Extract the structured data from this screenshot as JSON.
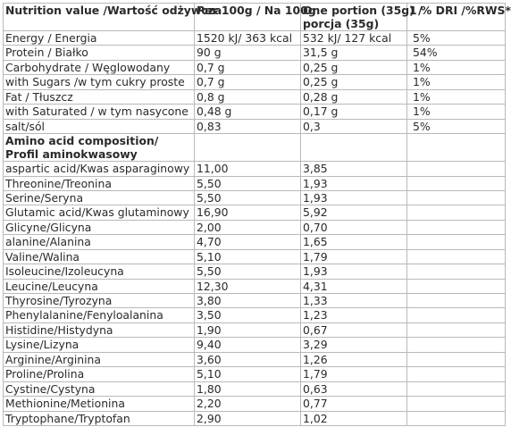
{
  "header": {
    "col1": "Nutrition value /Wartość odżywcza",
    "col2": "Per 100g / Na 100g",
    "col3_line1": "One portion (35g) /",
    "col3_line2": "porcja (35g)",
    "col4": "1 % DRI /%RWS*"
  },
  "nutrients": [
    {
      "name": "Energy / Energia",
      "per100": "1520 kJ/ 363 kcal",
      "portion": "532 kJ/ 127 kcal",
      "dri": "5%"
    },
    {
      "name": "Protein / Białko",
      "per100": "90 g",
      "portion": "31,5 g",
      "dri": "54%"
    },
    {
      "name": "Carbohydrate / Węglowodany",
      "per100": "0,7 g",
      "portion": "0,25 g",
      "dri": "1%"
    },
    {
      "name": "with Sugars /w tym cukry proste",
      "per100": "0,7 g",
      "portion": "0,25 g",
      "dri": "1%"
    },
    {
      "name": "Fat / Tłuszcz",
      "per100": "0,8 g",
      "portion": "0,28 g",
      "dri": "1%"
    },
    {
      "name": "with Saturated / w tym nasycone",
      "per100": "0,48 g",
      "portion": "0,17 g",
      "dri": "1%"
    },
    {
      "name": "salt/sól",
      "per100": "0,83",
      "portion": "0,3",
      "dri": "5%"
    }
  ],
  "amino_heading": "Amino acid composition/ Profil aminokwasowy",
  "amino_acids": [
    {
      "name": "aspartic acid/Kwas asparaginowy",
      "per100": "11,00",
      "portion": "3,85"
    },
    {
      "name": "Threonine/Treonina",
      "per100": "5,50",
      "portion": "1,93"
    },
    {
      "name": "Serine/Seryna",
      "per100": "5,50",
      "portion": "1,93"
    },
    {
      "name": "Glutamic acid/Kwas glutaminowy",
      "per100": "16,90",
      "portion": "5,92"
    },
    {
      "name": "Glicyne/Glicyna",
      "per100": "2,00",
      "portion": "0,70"
    },
    {
      "name": "alanine/Alanina",
      "per100": "4,70",
      "portion": "1,65"
    },
    {
      "name": "Valine/Walina",
      "per100": "5,10",
      "portion": "1,79"
    },
    {
      "name": "Isoleucine/Izoleucyna",
      "per100": "5,50",
      "portion": "1,93"
    },
    {
      "name": "Leucine/Leucyna",
      "per100": "12,30",
      "portion": "4,31"
    },
    {
      "name": "Thyrosine/Tyrozyna",
      "per100": "3,80",
      "portion": "1,33"
    },
    {
      "name": "Phenylalanine/Fenyloalanina",
      "per100": "3,50",
      "portion": "1,23"
    },
    {
      "name": "Histidine/Histydyna",
      "per100": "1,90",
      "portion": "0,67"
    },
    {
      "name": "Lysine/Lizyna",
      "per100": "9,40",
      "portion": "3,29"
    },
    {
      "name": "Arginine/Arginina",
      "per100": "3,60",
      "portion": "1,26"
    },
    {
      "name": "Proline/Prolina",
      "per100": "5,10",
      "portion": "1,79"
    },
    {
      "name": "Cystine/Cystyna",
      "per100": "1,80",
      "portion": "0,63"
    },
    {
      "name": "Methionine/Metionina",
      "per100": "2,20",
      "portion": "0,77"
    },
    {
      "name": "Tryptophane/Tryptofan",
      "per100": "2,90",
      "portion": "1,02"
    }
  ]
}
